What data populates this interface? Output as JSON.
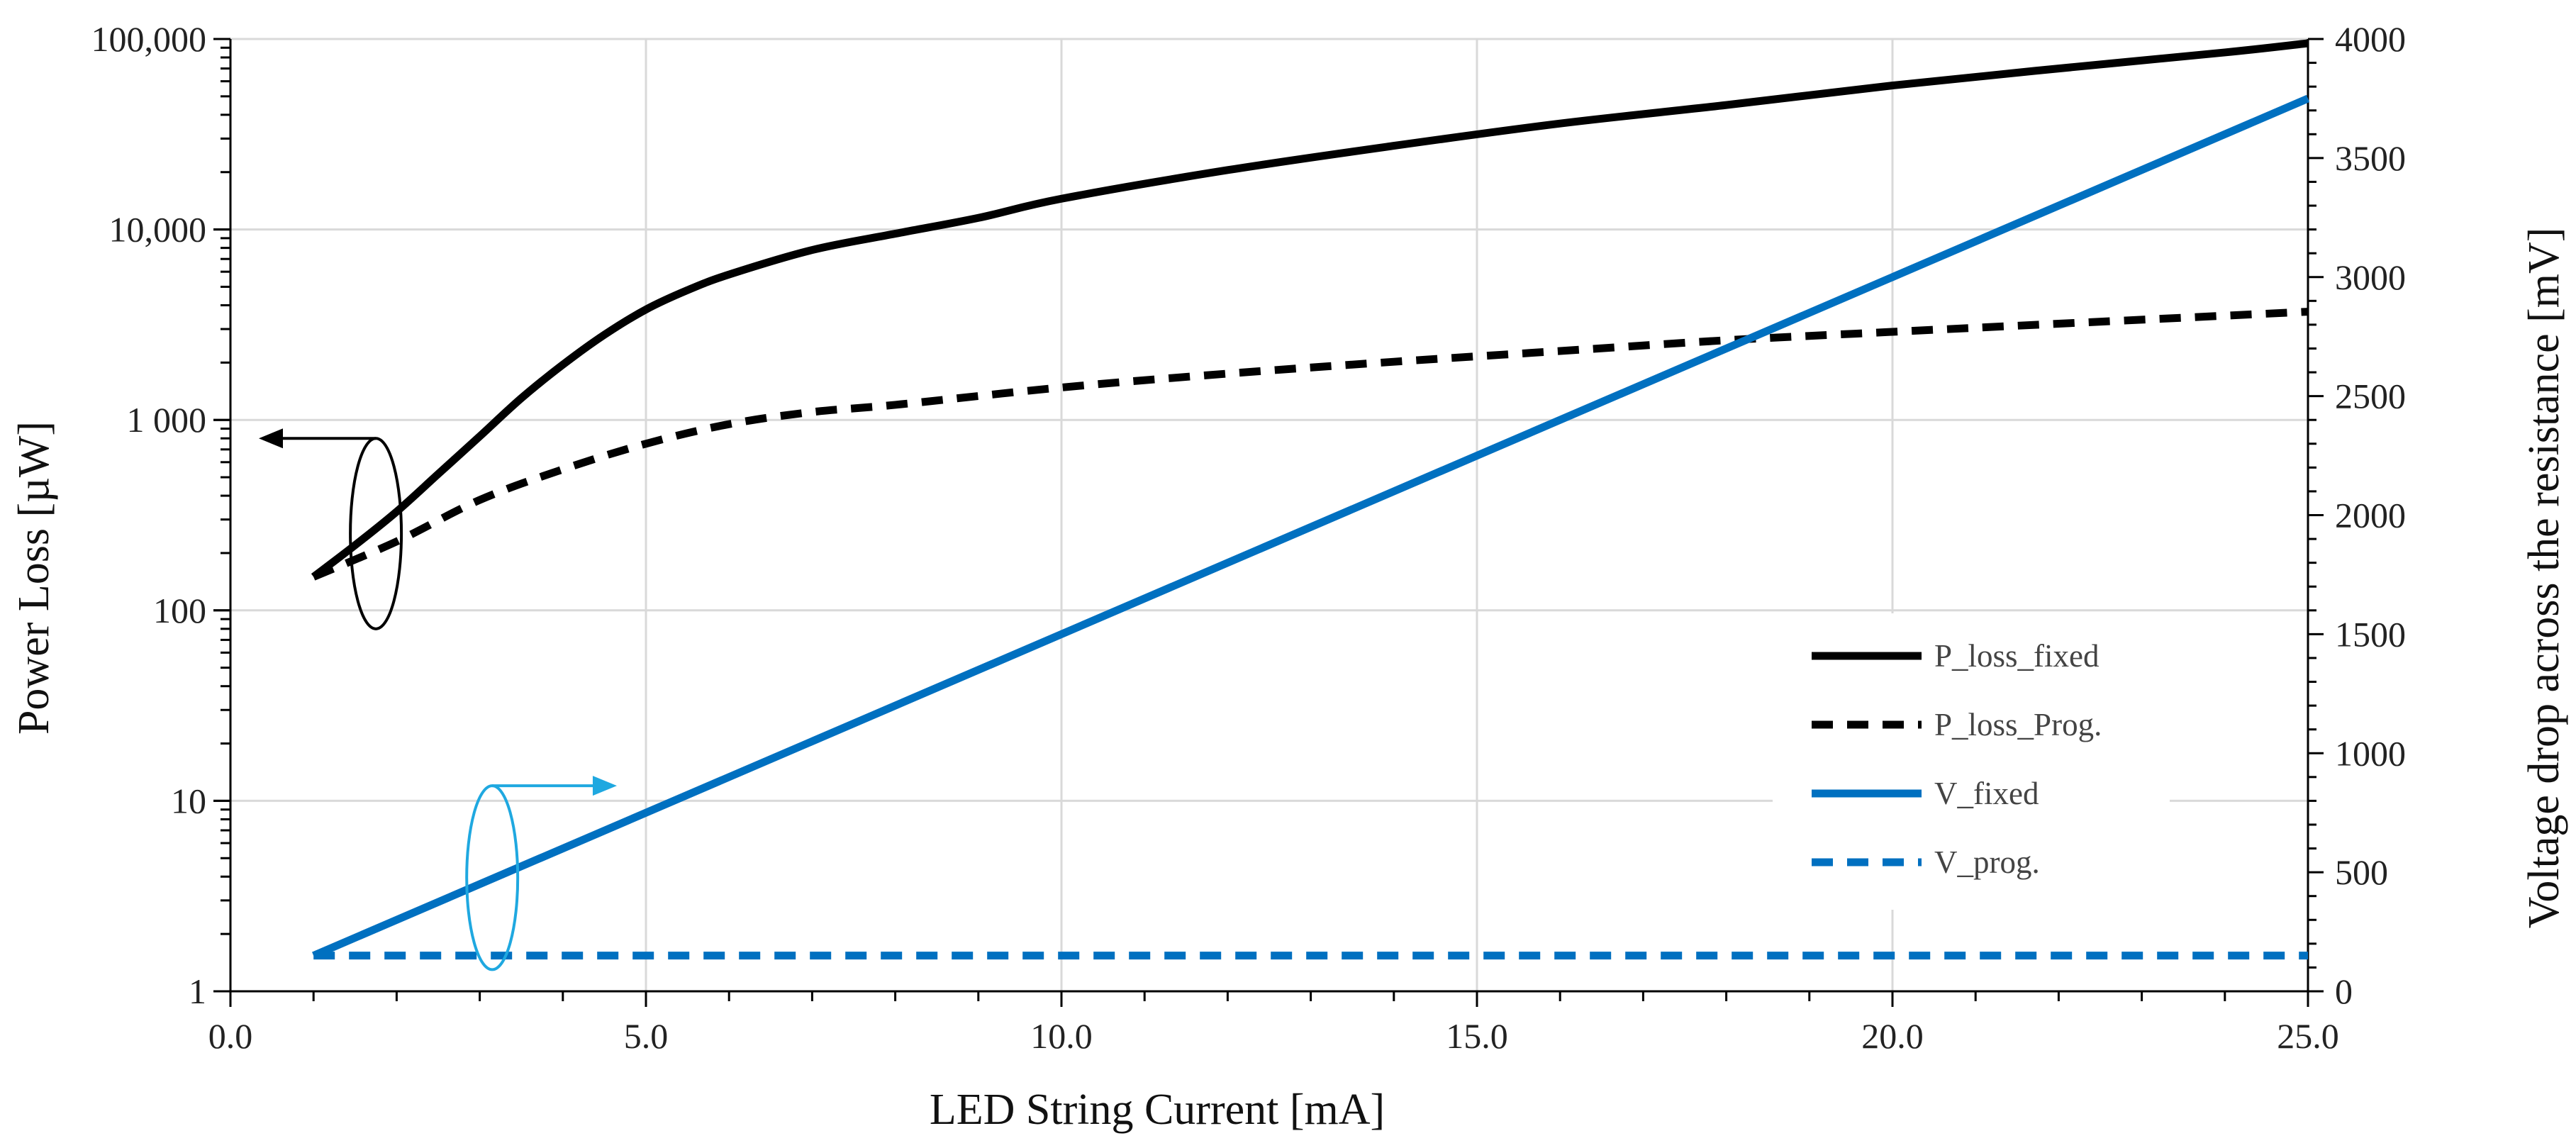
{
  "chart_data": {
    "type": "line",
    "xlabel": "LED String Current [mA]",
    "ylabel_left": "Power Loss [µW]",
    "ylabel_right": "Voltage drop across the resistance  [mV]",
    "xlim": [
      0,
      25
    ],
    "ylim_left": [
      1,
      100000
    ],
    "ylim_right": [
      0,
      4000
    ],
    "left_scale": "log",
    "grid": true,
    "x_ticks": [
      "0.0",
      "5.0",
      "10.0",
      "15.0",
      "20.0",
      "25.0"
    ],
    "left_ticks": [
      "1",
      "10",
      "100",
      "1 000",
      "10,000",
      "100,000"
    ],
    "right_ticks": [
      "0",
      "500",
      "1000",
      "1500",
      "2000",
      "2500",
      "3000",
      "3500",
      "4000"
    ],
    "legend_position": "right-center",
    "series": [
      {
        "name": "P_loss_fixed",
        "axis": "left",
        "color": "#000000",
        "dash": "solid",
        "x": [
          1,
          1.5,
          2,
          2.5,
          3,
          3.5,
          4,
          4.5,
          5,
          5.5,
          6,
          7,
          8,
          9,
          10,
          12,
          14,
          16,
          18,
          20,
          22,
          24,
          25
        ],
        "y": [
          150,
          220,
          330,
          520,
          820,
          1300,
          1950,
          2800,
          3800,
          4800,
          5800,
          7800,
          9500,
          11500,
          14500,
          20500,
          27500,
          36000,
          45000,
          57000,
          70000,
          85000,
          95000
        ]
      },
      {
        "name": "P_loss_Prog.",
        "axis": "left",
        "color": "#000000",
        "dash": "dashed",
        "x": [
          1,
          2,
          3,
          4,
          5,
          6,
          7,
          8,
          10,
          12,
          14,
          16,
          18,
          20,
          22,
          25
        ],
        "y": [
          150,
          230,
          380,
          550,
          750,
          950,
          1100,
          1200,
          1480,
          1750,
          2020,
          2300,
          2620,
          2900,
          3200,
          3700
        ]
      },
      {
        "name": "V_fixed",
        "axis": "right",
        "color": "#0070C0",
        "dash": "solid",
        "x": [
          1,
          25
        ],
        "y": [
          150,
          3750
        ]
      },
      {
        "name": "V_prog.",
        "axis": "right",
        "color": "#0070C0",
        "dash": "dashed",
        "x": [
          1,
          25
        ],
        "y": [
          150,
          150
        ]
      }
    ],
    "annotations": [
      {
        "target_axis": "left",
        "color": "#000000",
        "direction": "left"
      },
      {
        "target_axis": "right",
        "color": "#1FA8E0",
        "direction": "right"
      }
    ]
  }
}
